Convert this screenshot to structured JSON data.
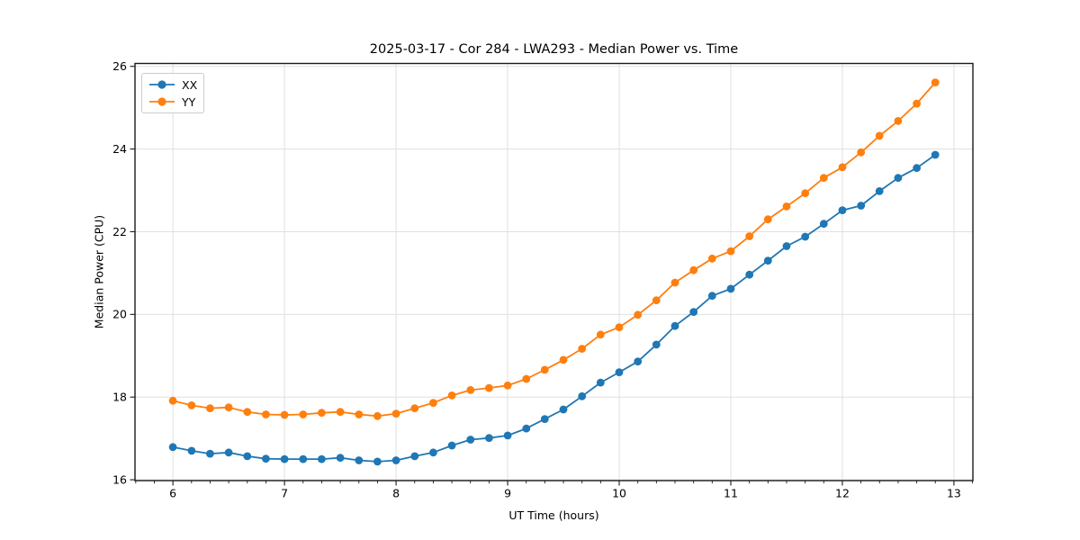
{
  "figure": {
    "background": "#ffffff"
  },
  "chart_data": {
    "type": "line",
    "title": "2025-03-17 - Cor 284 - LWA293 - Median Power vs. Time",
    "xlabel": "UT Time (hours)",
    "ylabel": "Median Power (CPU)",
    "xlim": [
      5.66,
      13.17
    ],
    "ylim": [
      15.98,
      26.07
    ],
    "xticks": [
      6,
      7,
      8,
      9,
      10,
      11,
      12,
      13
    ],
    "yticks": [
      16,
      18,
      20,
      22,
      24,
      26
    ],
    "x_minor_interval": 0.16667,
    "grid": true,
    "grid_color": "#e0e0e0",
    "spine_color": "#1a1a1a",
    "legend_position": "upper left",
    "x": [
      6,
      6.167,
      6.333,
      6.5,
      6.667,
      6.833,
      7,
      7.167,
      7.333,
      7.5,
      7.667,
      7.833,
      8,
      8.167,
      8.333,
      8.5,
      8.667,
      8.833,
      9,
      9.167,
      9.333,
      9.5,
      9.667,
      9.833,
      10,
      10.167,
      10.333,
      10.5,
      10.667,
      10.833,
      11,
      11.167,
      11.333,
      11.5,
      11.667,
      11.833,
      12,
      12.167,
      12.333,
      12.5,
      12.667,
      12.833
    ],
    "series": [
      {
        "name": "XX",
        "color": "#1f77b4",
        "marker": "circle",
        "y": [
          16.79,
          16.7,
          16.63,
          16.66,
          16.57,
          16.51,
          16.5,
          16.5,
          16.5,
          16.53,
          16.47,
          16.44,
          16.47,
          16.57,
          16.66,
          16.83,
          16.97,
          17.01,
          17.07,
          17.24,
          17.47,
          17.7,
          18.02,
          18.35,
          18.6,
          18.86,
          19.27,
          19.72,
          20.06,
          20.45,
          20.62,
          20.96,
          21.3,
          21.65,
          21.88,
          22.19,
          22.52,
          22.63,
          22.98,
          23.3,
          23.54,
          23.86
        ]
      },
      {
        "name": "YY",
        "color": "#ff7f0e",
        "marker": "circle",
        "y": [
          17.91,
          17.8,
          17.73,
          17.75,
          17.64,
          17.58,
          17.57,
          17.58,
          17.62,
          17.64,
          17.58,
          17.54,
          17.6,
          17.73,
          17.86,
          18.04,
          18.17,
          18.22,
          18.28,
          18.44,
          18.66,
          18.9,
          19.17,
          19.51,
          19.69,
          19.99,
          20.34,
          20.77,
          21.07,
          21.35,
          21.53,
          21.89,
          22.3,
          22.61,
          22.93,
          23.3,
          23.56,
          23.92,
          24.32,
          24.68,
          25.1,
          25.61
        ]
      }
    ]
  }
}
